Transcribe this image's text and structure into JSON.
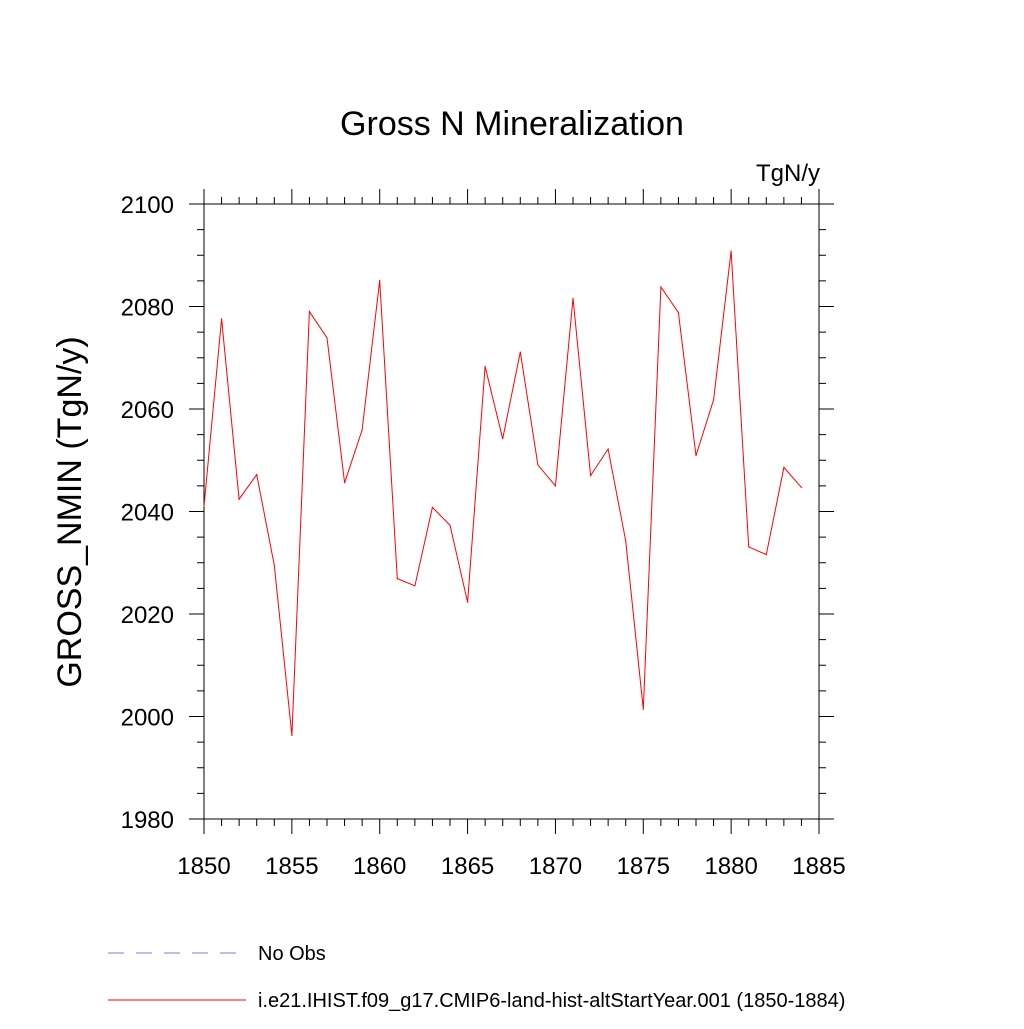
{
  "chart_data": {
    "type": "line",
    "title": "Gross N Mineralization",
    "units_label": "TgN/y",
    "ylabel": "GROSS_NMIN  (TgN/y)",
    "xlabel": "",
    "xlim": [
      1850,
      1885
    ],
    "ylim": [
      1980,
      2100
    ],
    "x_ticks": [
      1850,
      1855,
      1860,
      1865,
      1870,
      1875,
      1880,
      1885
    ],
    "y_ticks": [
      1980,
      2000,
      2020,
      2040,
      2060,
      2080,
      2100
    ],
    "grid": false,
    "legend_position": "bottom",
    "series": [
      {
        "name": "No Obs",
        "color": "#8a7fd0",
        "style": "dashed",
        "x": [],
        "y": []
      },
      {
        "name": "i.e21.IHIST.f09_g17.CMIP6-land-hist-altStartYear.001 (1850-1884)",
        "color": "#ff0000",
        "style": "solid",
        "x": [
          1850,
          1851,
          1852,
          1853,
          1854,
          1855,
          1856,
          1857,
          1858,
          1859,
          1860,
          1861,
          1862,
          1863,
          1864,
          1865,
          1866,
          1867,
          1868,
          1869,
          1870,
          1871,
          1872,
          1873,
          1874,
          1875,
          1876,
          1877,
          1878,
          1879,
          1880,
          1881,
          1882,
          1883,
          1884
        ],
        "y": [
          2041,
          2077.6,
          2042.4,
          2047.2,
          2029.5,
          1996.3,
          2079,
          2073.9,
          2045.6,
          2055.9,
          2085.1,
          2026.9,
          2025.5,
          2040.8,
          2037.3,
          2022.3,
          2068.3,
          2054.2,
          2071.1,
          2049.1,
          2045,
          2081.6,
          2047,
          2052.2,
          2034.3,
          2001.4,
          2083.8,
          2078.8,
          2050.9,
          2061.8,
          2090.8,
          2033.1,
          2031.6,
          2048.6,
          2044.7
        ]
      }
    ]
  }
}
